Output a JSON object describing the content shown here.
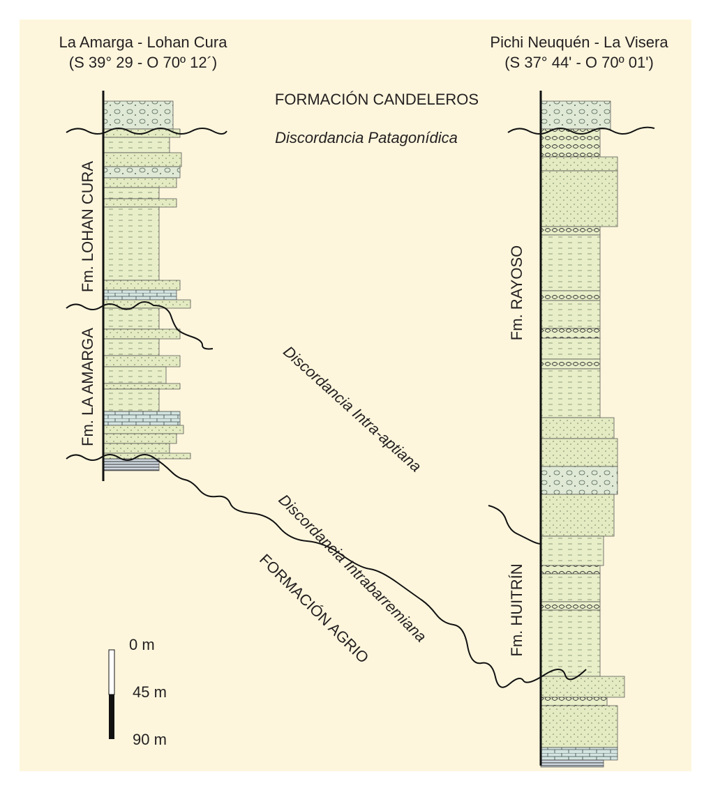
{
  "columns": [
    {
      "title": "La Amarga - Lohan Cura",
      "coordinates": "(S 39° 29 - O 70º 12´)",
      "formations": [
        "Fm. LOHAN CURA",
        "Fm. LA AMARGA"
      ]
    },
    {
      "title": "Pichi Neuquén - La Visera",
      "coordinates": "(S 37° 44' - O 70º 01')",
      "formations": [
        "Fm. RAYOSO",
        "Fm. HUITRÍN"
      ]
    }
  ],
  "labels": {
    "upper_formation": "FORMACIÓN CANDELEROS",
    "upper_unconformity": "Discordancia Patagonídica",
    "middle_unconformity": "Discordancia Intra-aptiana",
    "lower_unconformity": "Discordancia Intrabarremiana",
    "lower_formation": "FORMACIÓN AGRIO"
  },
  "scale": {
    "labels": [
      "0 m",
      "45 m",
      "90 m"
    ]
  }
}
